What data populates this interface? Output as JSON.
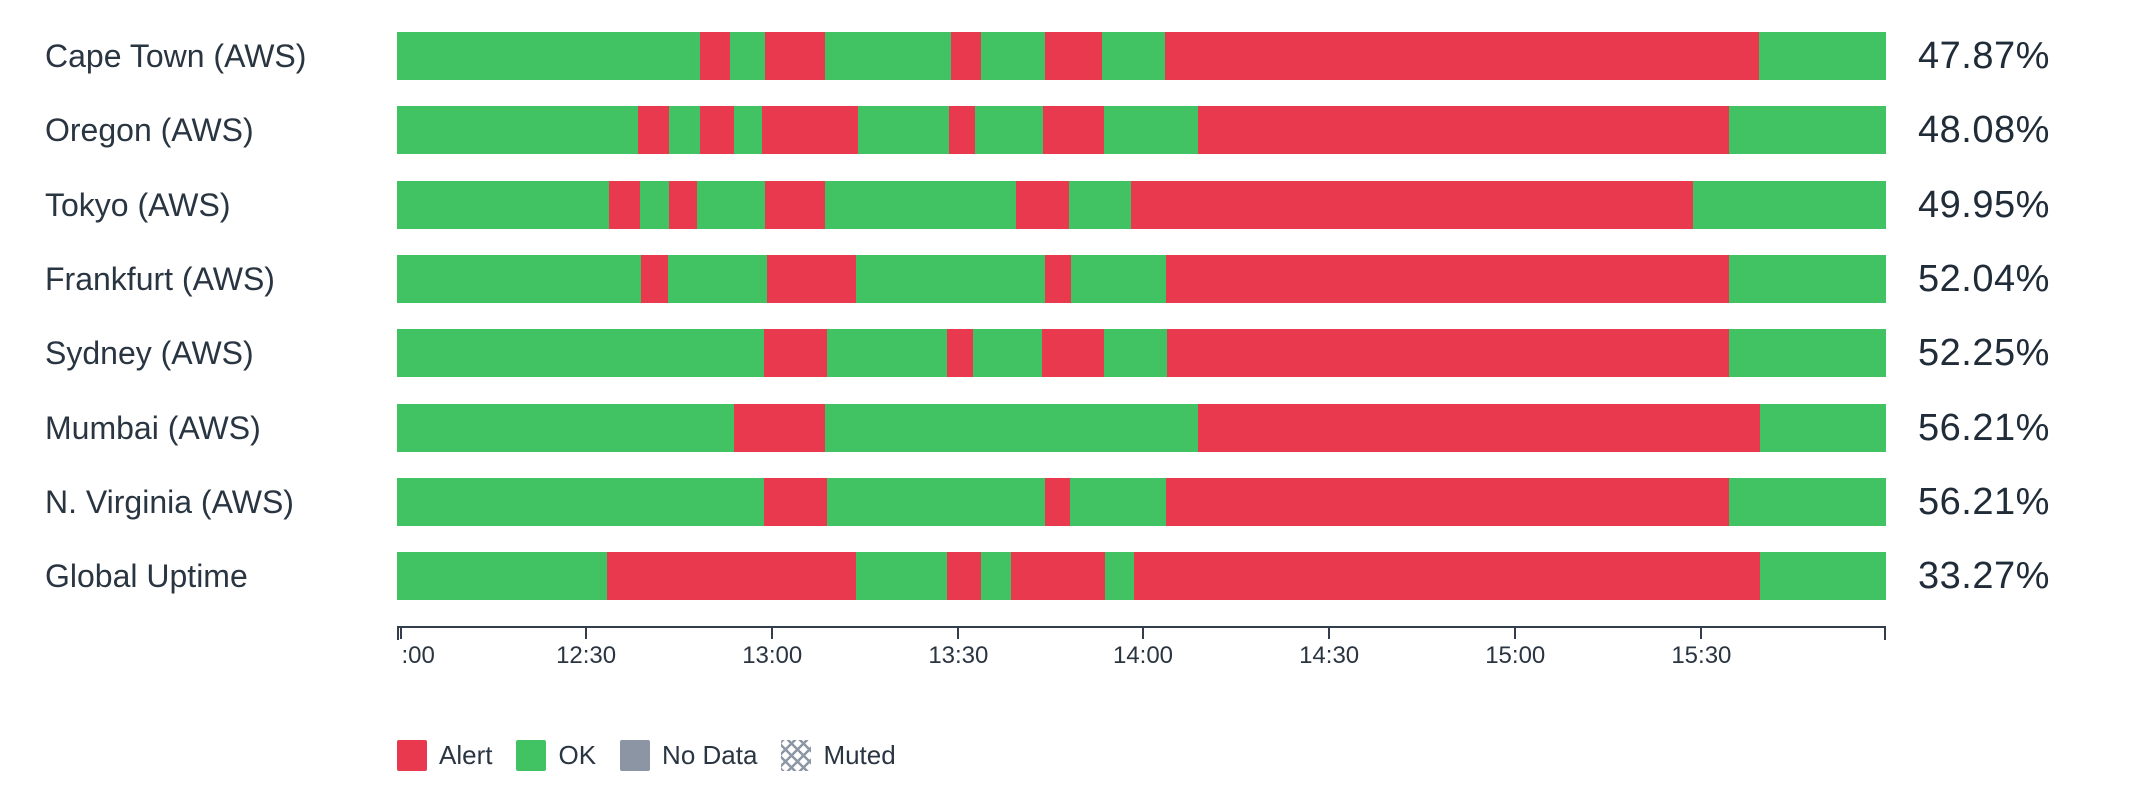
{
  "panel": {
    "background": "#ffffff",
    "title": ""
  },
  "chart_data": {
    "type": "bar",
    "subtype": "status-timeline-horizontal-stacked",
    "title": "",
    "xlabel": "",
    "ylabel": "",
    "grid": false,
    "legend_position": "bottom-left",
    "time_axis": {
      "start": "12:00",
      "end": "16:00",
      "tick_labels": [
        ":00",
        "12:30",
        "13:00",
        "13:30",
        "14:00",
        "14:30",
        "15:00",
        "15:30"
      ],
      "tick_positions_pct": [
        0.3,
        12.7,
        25.2,
        37.7,
        50.1,
        62.6,
        75.1,
        87.6
      ]
    },
    "statuses": {
      "Alert": "#e8394f",
      "OK": "#41c363",
      "No Data": "#8b95a3",
      "Muted": "crosshatch"
    },
    "legend": [
      {
        "label": "Alert",
        "status": "Alert"
      },
      {
        "label": "OK",
        "status": "OK"
      },
      {
        "label": "No Data",
        "status": "No Data"
      },
      {
        "label": "Muted",
        "status": "Muted"
      }
    ],
    "rows": [
      {
        "label": "Cape Town (AWS)",
        "value": "47.87%",
        "uptime_pct": 47.87,
        "segments": [
          {
            "status": "OK",
            "from": "12:00",
            "to": "12:49",
            "pct": 20.36
          },
          {
            "status": "Alert",
            "from": "12:49",
            "to": "12:54",
            "pct": 2.02
          },
          {
            "status": "OK",
            "from": "12:54",
            "to": "12:59",
            "pct": 2.35
          },
          {
            "status": "Alert",
            "from": "12:59",
            "to": "13:09",
            "pct": 4.03
          },
          {
            "status": "OK",
            "from": "13:09",
            "to": "13:29",
            "pct": 8.47
          },
          {
            "status": "Alert",
            "from": "13:29",
            "to": "13:34",
            "pct": 2.01
          },
          {
            "status": "OK",
            "from": "13:34",
            "to": "13:45",
            "pct": 4.31
          },
          {
            "status": "Alert",
            "from": "13:45",
            "to": "13:54",
            "pct": 3.83
          },
          {
            "status": "OK",
            "from": "13:54",
            "to": "14:04",
            "pct": 4.23
          },
          {
            "status": "Alert",
            "from": "14:04",
            "to": "15:40",
            "pct": 39.86
          },
          {
            "status": "OK",
            "from": "15:40",
            "to": "16:00",
            "pct": 8.53
          }
        ]
      },
      {
        "label": "Oregon (AWS)",
        "value": "48.08%",
        "uptime_pct": 48.08,
        "segments": [
          {
            "status": "OK",
            "from": "12:00",
            "to": "12:39",
            "pct": 16.17
          },
          {
            "status": "Alert",
            "from": "12:39",
            "to": "12:44",
            "pct": 2.13
          },
          {
            "status": "OK",
            "from": "12:44",
            "to": "12:49",
            "pct": 2.06
          },
          {
            "status": "Alert",
            "from": "12:49",
            "to": "12:54",
            "pct": 2.25
          },
          {
            "status": "OK",
            "from": "12:54",
            "to": "12:59",
            "pct": 1.93
          },
          {
            "status": "Alert",
            "from": "12:59",
            "to": "13:14",
            "pct": 6.43
          },
          {
            "status": "OK",
            "from": "13:14",
            "to": "13:29",
            "pct": 6.1
          },
          {
            "status": "Alert",
            "from": "13:29",
            "to": "13:33",
            "pct": 1.74
          },
          {
            "status": "OK",
            "from": "13:33",
            "to": "13:44",
            "pct": 4.56
          },
          {
            "status": "Alert",
            "from": "13:44",
            "to": "13:54",
            "pct": 4.12
          },
          {
            "status": "OK",
            "from": "13:54",
            "to": "14:09",
            "pct": 6.3
          },
          {
            "status": "Alert",
            "from": "14:09",
            "to": "15:35",
            "pct": 35.68
          },
          {
            "status": "OK",
            "from": "15:35",
            "to": "16:00",
            "pct": 10.53
          }
        ]
      },
      {
        "label": "Tokyo (AWS)",
        "value": "49.95%",
        "uptime_pct": 49.95,
        "segments": [
          {
            "status": "OK",
            "from": "12:00",
            "to": "12:34",
            "pct": 14.25
          },
          {
            "status": "Alert",
            "from": "12:34",
            "to": "12:39",
            "pct": 2.05
          },
          {
            "status": "OK",
            "from": "12:39",
            "to": "12:44",
            "pct": 2.0
          },
          {
            "status": "Alert",
            "from": "12:44",
            "to": "12:48",
            "pct": 1.86
          },
          {
            "status": "OK",
            "from": "12:48",
            "to": "12:59",
            "pct": 4.57
          },
          {
            "status": "Alert",
            "from": "12:59",
            "to": "13:09",
            "pct": 3.99
          },
          {
            "status": "OK",
            "from": "13:09",
            "to": "13:40",
            "pct": 12.85
          },
          {
            "status": "Alert",
            "from": "13:40",
            "to": "13:48",
            "pct": 3.54
          },
          {
            "status": "OK",
            "from": "13:48",
            "to": "13:58",
            "pct": 4.18
          },
          {
            "status": "Alert",
            "from": "13:58",
            "to": "15:29",
            "pct": 37.73
          },
          {
            "status": "OK",
            "from": "15:29",
            "to": "16:00",
            "pct": 12.98
          }
        ]
      },
      {
        "label": "Frankfurt (AWS)",
        "value": "52.04%",
        "uptime_pct": 52.04,
        "segments": [
          {
            "status": "OK",
            "from": "12:00",
            "to": "12:39",
            "pct": 16.37
          },
          {
            "status": "Alert",
            "from": "12:39",
            "to": "12:44",
            "pct": 1.86
          },
          {
            "status": "OK",
            "from": "12:44",
            "to": "13:00",
            "pct": 6.63
          },
          {
            "status": "Alert",
            "from": "13:00",
            "to": "13:14",
            "pct": 5.98
          },
          {
            "status": "OK",
            "from": "13:14",
            "to": "13:44",
            "pct": 12.66
          },
          {
            "status": "Alert",
            "from": "13:44",
            "to": "13:49",
            "pct": 1.8
          },
          {
            "status": "OK",
            "from": "13:49",
            "to": "14:04",
            "pct": 6.37
          },
          {
            "status": "Alert",
            "from": "14:04",
            "to": "15:35",
            "pct": 37.8
          },
          {
            "status": "OK",
            "from": "15:35",
            "to": "16:00",
            "pct": 10.53
          }
        ]
      },
      {
        "label": "Sydney (AWS)",
        "value": "52.25%",
        "uptime_pct": 52.25,
        "segments": [
          {
            "status": "OK",
            "from": "12:00",
            "to": "12:59",
            "pct": 24.66
          },
          {
            "status": "Alert",
            "from": "12:59",
            "to": "13:09",
            "pct": 4.24
          },
          {
            "status": "OK",
            "from": "13:09",
            "to": "13:29",
            "pct": 8.04
          },
          {
            "status": "Alert",
            "from": "13:29",
            "to": "13:33",
            "pct": 1.74
          },
          {
            "status": "OK",
            "from": "13:33",
            "to": "13:44",
            "pct": 4.63
          },
          {
            "status": "Alert",
            "from": "13:44",
            "to": "13:54",
            "pct": 4.18
          },
          {
            "status": "OK",
            "from": "13:54",
            "to": "14:04",
            "pct": 4.24
          },
          {
            "status": "Alert",
            "from": "14:04",
            "to": "15:35",
            "pct": 37.74
          },
          {
            "status": "OK",
            "from": "15:35",
            "to": "16:00",
            "pct": 10.53
          }
        ]
      },
      {
        "label": "Mumbai (AWS)",
        "value": "56.21%",
        "uptime_pct": 56.21,
        "segments": [
          {
            "status": "OK",
            "from": "12:00",
            "to": "12:54",
            "pct": 22.61
          },
          {
            "status": "Alert",
            "from": "12:54",
            "to": "13:09",
            "pct": 6.11
          },
          {
            "status": "OK",
            "from": "13:09",
            "to": "14:09",
            "pct": 25.07
          },
          {
            "status": "Alert",
            "from": "14:09",
            "to": "15:40",
            "pct": 37.73
          },
          {
            "status": "OK",
            "from": "15:40",
            "to": "16:00",
            "pct": 8.48
          }
        ]
      },
      {
        "label": "N. Virginia (AWS)",
        "value": "56.21%",
        "uptime_pct": 56.21,
        "segments": [
          {
            "status": "OK",
            "from": "12:00",
            "to": "12:59",
            "pct": 24.66
          },
          {
            "status": "Alert",
            "from": "12:59",
            "to": "13:09",
            "pct": 4.24
          },
          {
            "status": "OK",
            "from": "13:09",
            "to": "13:44",
            "pct": 14.6
          },
          {
            "status": "Alert",
            "from": "13:44",
            "to": "13:49",
            "pct": 1.73
          },
          {
            "status": "OK",
            "from": "13:49",
            "to": "14:04",
            "pct": 6.44
          },
          {
            "status": "Alert",
            "from": "14:04",
            "to": "15:35",
            "pct": 37.8
          },
          {
            "status": "OK",
            "from": "15:35",
            "to": "16:00",
            "pct": 10.53
          }
        ]
      },
      {
        "label": "Global Uptime",
        "value": "33.27%",
        "uptime_pct": 33.27,
        "segments": [
          {
            "status": "OK",
            "from": "12:00",
            "to": "12:34",
            "pct": 14.12
          },
          {
            "status": "Alert",
            "from": "12:34",
            "to": "13:14",
            "pct": 16.72
          },
          {
            "status": "OK",
            "from": "13:14",
            "to": "13:29",
            "pct": 6.1
          },
          {
            "status": "Alert",
            "from": "13:29",
            "to": "13:34",
            "pct": 2.26
          },
          {
            "status": "OK",
            "from": "13:34",
            "to": "13:39",
            "pct": 2.05
          },
          {
            "status": "Alert",
            "from": "13:39",
            "to": "13:54",
            "pct": 6.3
          },
          {
            "status": "OK",
            "from": "13:54",
            "to": "13:59",
            "pct": 1.93
          },
          {
            "status": "Alert",
            "from": "13:59",
            "to": "15:40",
            "pct": 42.04
          },
          {
            "status": "OK",
            "from": "15:40",
            "to": "16:00",
            "pct": 8.48
          }
        ]
      }
    ]
  }
}
